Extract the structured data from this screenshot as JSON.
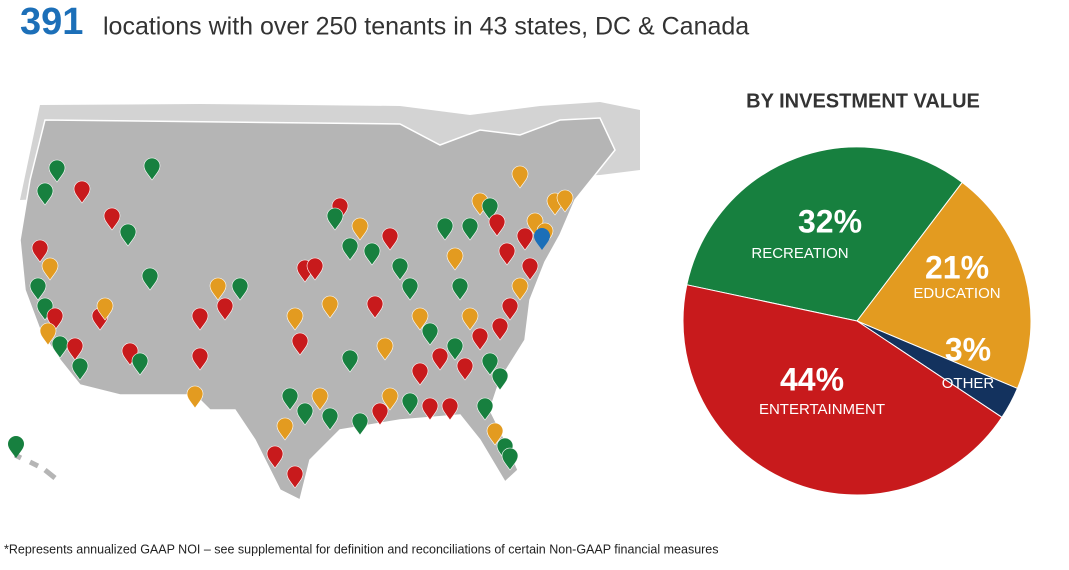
{
  "headline": {
    "number": "391",
    "text": "locations with over 250 tenants in 43 states, DC & Canada"
  },
  "chart_data": {
    "type": "pie",
    "title": "BY INVESTMENT VALUE",
    "categories": [
      "RECREATION",
      "EDUCATION",
      "OTHER",
      "ENTERTAINMENT"
    ],
    "values": [
      32,
      21,
      3,
      44
    ],
    "value_labels": [
      "32%",
      "21%",
      "3%",
      "44%"
    ],
    "colors": [
      "#17803f",
      "#e39b20",
      "#13325e",
      "#c81a1c"
    ]
  },
  "footnote": "*Represents annualized GAAP NOI – see supplemental for definition and reconciliations of certain Non-GAAP financial measures"
}
